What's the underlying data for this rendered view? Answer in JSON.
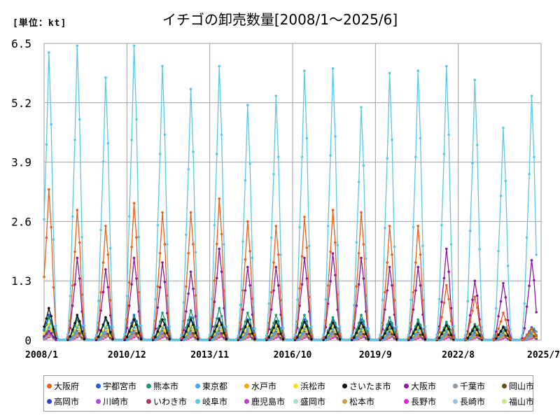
{
  "header": {
    "unit": "[単位：kt]",
    "title": "イチゴの卸売数量[2008/1～2025/6]"
  },
  "chart_data": {
    "type": "line",
    "y_unit": "kt",
    "ylim": [
      0,
      6.5
    ],
    "y_ticks": [
      0,
      1.3,
      2.6,
      3.9,
      5.2,
      6.5
    ],
    "y_tick_labels": [
      "0",
      "1.3",
      "2.6",
      "3.9",
      "5.2",
      "6.5"
    ],
    "x_range": [
      "2008-01",
      "2025-07"
    ],
    "x_ticks": [
      "2008/1",
      "2010/12",
      "2013/11",
      "2016/10",
      "2019/9",
      "2022/8",
      "2025/7"
    ],
    "grid": true,
    "legend_position": "bottom",
    "series": [
      {
        "name": "大阪府",
        "color": "#e8601c",
        "peaks": [
          3.3,
          2.85,
          2.5,
          3.0,
          2.8,
          2.8,
          3.1,
          2.6,
          2.5,
          2.7,
          2.85,
          2.8,
          2.5,
          2.5,
          1.2,
          0.95,
          0.6,
          0.25
        ],
        "peak_month": 3
      },
      {
        "name": "宇都宮市",
        "color": "#1f5fd6",
        "peaks": [
          0.55,
          0.5,
          0.5,
          0.55,
          0.45,
          0.5,
          0.48,
          0.45,
          0.42,
          0.45,
          0.45,
          0.45,
          0.4,
          0.4,
          0.38,
          0.35,
          0.3,
          0.28
        ],
        "peak_month": 3
      },
      {
        "name": "熊本市",
        "color": "#1a9a6c",
        "peaks": [
          0.5,
          0.45,
          0.45,
          0.5,
          0.6,
          0.65,
          0.7,
          0.6,
          0.55,
          0.55,
          0.5,
          0.55,
          0.5,
          0.45,
          0.4,
          0.35,
          0.3,
          0.25
        ],
        "peak_month": 3
      },
      {
        "name": "東京都",
        "color": "#48a6e8",
        "peaks": [
          0.4,
          0.4,
          0.38,
          0.4,
          0.38,
          0.38,
          0.38,
          0.35,
          0.35,
          0.35,
          0.35,
          0.35,
          0.35,
          0.32,
          0.3,
          0.3,
          0.28,
          0.25
        ],
        "peak_month": 4
      },
      {
        "name": "水戸市",
        "color": "#f2a900",
        "peaks": [
          0.3,
          0.3,
          0.28,
          0.3,
          0.28,
          0.3,
          0.3,
          0.28,
          0.28,
          0.28,
          0.28,
          0.28,
          0.25,
          0.25,
          0.25,
          0.22,
          0.2,
          0.2
        ],
        "peak_month": 3
      },
      {
        "name": "浜松市",
        "color": "#f7e01a",
        "peaks": [
          0.35,
          0.32,
          0.3,
          0.32,
          0.3,
          0.32,
          0.32,
          0.3,
          0.3,
          0.3,
          0.3,
          0.3,
          0.28,
          0.28,
          0.26,
          0.25,
          0.22,
          0.2
        ],
        "peak_month": 3
      },
      {
        "name": "さいたま市",
        "color": "#111111",
        "peaks": [
          0.7,
          0.55,
          0.5,
          0.45,
          0.45,
          0.45,
          0.45,
          0.42,
          0.4,
          0.4,
          0.38,
          0.38,
          0.35,
          0.35,
          0.32,
          0.3,
          0.28,
          0.25
        ],
        "peak_month": 3
      },
      {
        "name": "大阪市",
        "color": "#8b1a9b",
        "peaks": [
          0.2,
          1.8,
          1.55,
          1.8,
          1.7,
          1.5,
          2.0,
          1.6,
          1.6,
          1.8,
          1.9,
          1.8,
          1.6,
          1.6,
          2.0,
          1.3,
          1.25,
          1.75
        ],
        "peak_month": 3
      },
      {
        "name": "千葉市",
        "color": "#8e9aa8",
        "peaks": [
          0.25,
          0.25,
          0.25,
          0.25,
          0.25,
          0.25,
          0.25,
          0.25,
          0.22,
          0.22,
          0.22,
          0.22,
          0.2,
          0.2,
          0.2,
          0.18,
          0.18,
          0.15
        ],
        "peak_month": 4
      },
      {
        "name": "岡山市",
        "color": "#6b4d1a",
        "peaks": [
          0.2,
          0.2,
          0.18,
          0.2,
          0.2,
          0.2,
          0.2,
          0.18,
          0.18,
          0.18,
          0.18,
          0.18,
          0.18,
          0.16,
          0.16,
          0.15,
          0.14,
          0.12
        ],
        "peak_month": 3
      },
      {
        "name": "高岡市",
        "color": "#2b3fd9",
        "peaks": [
          0.15,
          0.15,
          0.15,
          0.15,
          0.14,
          0.14,
          0.14,
          0.13,
          0.13,
          0.13,
          0.12,
          0.12,
          0.12,
          0.11,
          0.1,
          0.1,
          0.1,
          0.1
        ],
        "peak_month": 3
      },
      {
        "name": "川崎市",
        "color": "#b44be0",
        "peaks": [
          0.15,
          0.14,
          0.14,
          0.14,
          0.13,
          0.13,
          0.13,
          0.12,
          0.12,
          0.12,
          0.12,
          0.11,
          0.11,
          0.1,
          0.1,
          0.1,
          0.09,
          0.08
        ],
        "peak_month": 3
      },
      {
        "name": "いわき市",
        "color": "#b5316a",
        "peaks": [
          0.12,
          0.12,
          0.12,
          0.12,
          0.11,
          0.11,
          0.11,
          0.1,
          0.1,
          0.1,
          0.1,
          0.1,
          0.1,
          0.09,
          0.09,
          0.08,
          0.08,
          0.08
        ],
        "peak_month": 3
      },
      {
        "name": "岐阜市",
        "color": "#5bc8e8",
        "peaks": [
          6.3,
          6.45,
          5.75,
          6.45,
          6.0,
          5.5,
          6.0,
          5.15,
          5.35,
          5.9,
          5.95,
          5.1,
          5.85,
          5.9,
          6.0,
          5.7,
          4.65,
          5.35
        ],
        "peak_month": 3
      },
      {
        "name": "鹿児島市",
        "color": "#c43fc9",
        "peaks": [
          0.1,
          0.1,
          0.1,
          0.1,
          0.1,
          0.1,
          0.1,
          0.1,
          0.09,
          0.09,
          0.09,
          0.09,
          0.09,
          0.08,
          0.08,
          0.08,
          0.07,
          0.07
        ],
        "peak_month": 3
      },
      {
        "name": "盛岡市",
        "color": "#a8e0d0",
        "peaks": [
          0.1,
          0.1,
          0.1,
          0.1,
          0.1,
          0.1,
          0.1,
          0.09,
          0.09,
          0.09,
          0.09,
          0.09,
          0.08,
          0.08,
          0.08,
          0.07,
          0.07,
          0.06
        ],
        "peak_month": 4
      },
      {
        "name": "松本市",
        "color": "#c9a24a",
        "peaks": [
          0.15,
          0.15,
          0.14,
          0.15,
          0.14,
          0.14,
          0.14,
          0.13,
          0.13,
          0.13,
          0.13,
          0.12,
          0.12,
          0.12,
          0.11,
          0.1,
          0.1,
          0.1
        ],
        "peak_month": 4
      },
      {
        "name": "長野市",
        "color": "#e01ae8",
        "peaks": [
          0.1,
          0.1,
          0.09,
          0.1,
          0.09,
          0.09,
          0.09,
          0.09,
          0.08,
          0.08,
          0.08,
          0.08,
          0.08,
          0.07,
          0.07,
          0.07,
          0.06,
          0.06
        ],
        "peak_month": 4
      },
      {
        "name": "長崎市",
        "color": "#9fc5d8",
        "peaks": [
          0.12,
          0.12,
          0.12,
          0.12,
          0.12,
          0.12,
          0.12,
          0.11,
          0.11,
          0.11,
          0.11,
          0.11,
          0.1,
          0.1,
          0.1,
          0.09,
          0.09,
          0.08
        ],
        "peak_month": 3
      },
      {
        "name": "福山市",
        "color": "#c9e68a",
        "peaks": [
          0.1,
          0.1,
          0.1,
          0.1,
          0.1,
          0.1,
          0.1,
          0.09,
          0.09,
          0.09,
          0.09,
          0.09,
          0.09,
          0.08,
          0.08,
          0.08,
          0.07,
          0.07
        ],
        "peak_month": 3
      }
    ]
  }
}
